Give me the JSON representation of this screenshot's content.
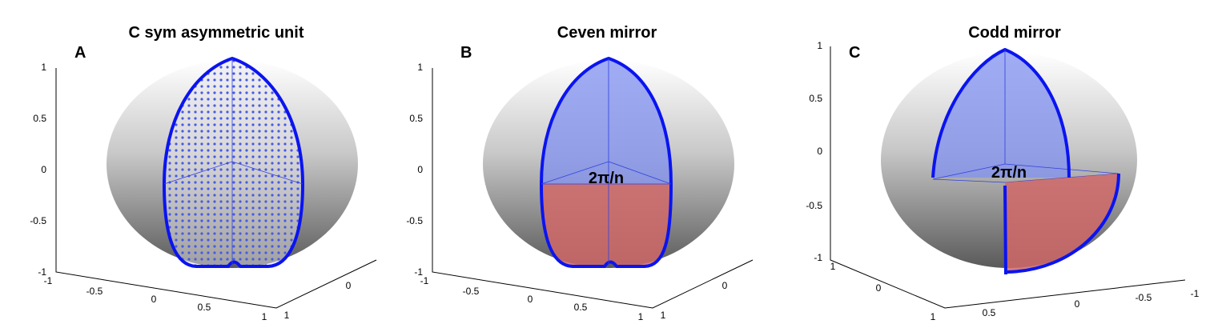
{
  "panels": [
    {
      "letter": "A",
      "title": "C sym asymmetric unit",
      "z_ticks": [
        1,
        0.5,
        0,
        -0.5,
        -1
      ],
      "x_ticks": [
        -1,
        -0.5,
        0,
        0.5,
        1
      ],
      "y_ticks": [
        1,
        0
      ]
    },
    {
      "letter": "B",
      "title": "Ceven mirror",
      "annotation": "2π/n",
      "z_ticks": [
        1,
        0.5,
        0,
        -0.5,
        -1
      ],
      "x_ticks": [
        -1,
        -0.5,
        0,
        0.5,
        1
      ],
      "y_ticks": [
        1,
        0
      ]
    },
    {
      "letter": "C",
      "title": "Codd mirror",
      "annotation": "2π/n",
      "z_ticks": [
        1,
        0.5,
        0,
        -0.5,
        -1
      ],
      "x_ticks": [
        1,
        0.5,
        0,
        -0.5,
        -1
      ],
      "y_ticks": [
        1,
        0
      ]
    }
  ]
}
